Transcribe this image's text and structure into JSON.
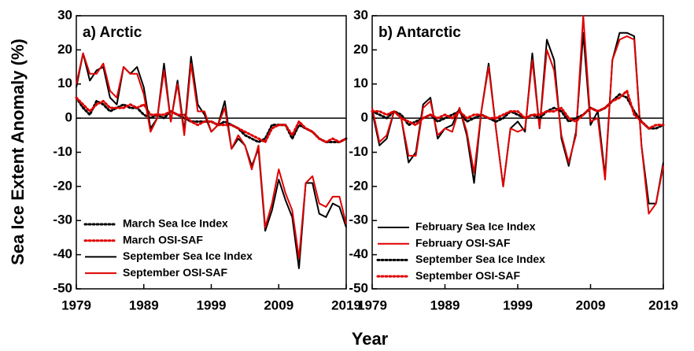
{
  "chart_data": [
    {
      "type": "line",
      "title": "a) Arctic",
      "ylabel": "Sea Ice Extent Anomaly (%)",
      "xlabel": "Year",
      "x": [
        1979,
        1980,
        1981,
        1982,
        1983,
        1984,
        1985,
        1986,
        1987,
        1988,
        1989,
        1990,
        1991,
        1992,
        1993,
        1994,
        1995,
        1996,
        1997,
        1998,
        1999,
        2000,
        2001,
        2002,
        2003,
        2004,
        2005,
        2006,
        2007,
        2008,
        2009,
        2010,
        2011,
        2012,
        2013,
        2014,
        2015,
        2016,
        2017,
        2018,
        2019
      ],
      "xlim": [
        1979,
        2019
      ],
      "xticks": [
        1979,
        1989,
        1999,
        2009,
        2019
      ],
      "ylim": [
        -50,
        30
      ],
      "yticks": [
        -50,
        -40,
        -30,
        -20,
        -10,
        0,
        10,
        20,
        30
      ],
      "hline": 0,
      "series": [
        {
          "name": "March Sea Ice Index",
          "color": "#000000",
          "dashed": true,
          "values": [
            6,
            3,
            1,
            5,
            4,
            2,
            3,
            4,
            3,
            3,
            1,
            0,
            1,
            0,
            2,
            1,
            0,
            -1,
            -1,
            -1,
            -1,
            -2,
            -1,
            -2,
            -3,
            -5,
            -6,
            -7,
            -6,
            -2,
            -2,
            -2,
            -6,
            -2,
            -3,
            -4,
            -6,
            -7,
            -7,
            -7,
            -6
          ]
        },
        {
          "name": "March OSI-SAF",
          "color": "#e00000",
          "dashed": true,
          "values": [
            6,
            4,
            2,
            4,
            5,
            3,
            3,
            3,
            4,
            3,
            4,
            1,
            1,
            1,
            2,
            1,
            1,
            -1,
            -2,
            -1,
            -1,
            -2,
            -2,
            -2,
            -3,
            -4,
            -5,
            -6,
            -7,
            -3,
            -2,
            -2,
            -5,
            -1,
            -3,
            -4,
            -6,
            -7,
            -6,
            -7,
            -6
          ]
        },
        {
          "name": "September Sea Ice Index",
          "color": "#000000",
          "dashed": false,
          "values": [
            9,
            19,
            11,
            14,
            15,
            6,
            4,
            15,
            13,
            15,
            9,
            -3,
            0,
            16,
            -1,
            11,
            -4,
            18,
            4,
            1,
            -4,
            -2,
            5,
            -9,
            -6,
            -8,
            -14,
            -9,
            -33,
            -27,
            -18,
            -24,
            -29,
            -44,
            -19,
            -19,
            -28,
            -29,
            -25,
            -26,
            -32
          ]
        },
        {
          "name": "September OSI-SAF",
          "color": "#e00000",
          "dashed": false,
          "values": [
            10,
            19,
            13,
            13,
            16,
            8,
            6,
            15,
            13,
            13,
            7,
            -4,
            0,
            14,
            -1,
            10,
            -5,
            16,
            2,
            2,
            -4,
            -2,
            3,
            -9,
            -5,
            -8,
            -15,
            -8,
            -32,
            -25,
            -15,
            -22,
            -27,
            -41,
            -19,
            -17,
            -25,
            -26,
            -23,
            -23,
            -31
          ]
        }
      ]
    },
    {
      "type": "line",
      "title": "b) Antarctic",
      "x": [
        1979,
        1980,
        1981,
        1982,
        1983,
        1984,
        1985,
        1986,
        1987,
        1988,
        1989,
        1990,
        1991,
        1992,
        1993,
        1994,
        1995,
        1996,
        1997,
        1998,
        1999,
        2000,
        2001,
        2002,
        2003,
        2004,
        2005,
        2006,
        2007,
        2008,
        2009,
        2010,
        2011,
        2012,
        2013,
        2014,
        2015,
        2016,
        2017,
        2018,
        2019
      ],
      "xlim": [
        1979,
        2019
      ],
      "xticks": [
        1979,
        1989,
        1999,
        2009,
        2019
      ],
      "ylim": [
        -50,
        30
      ],
      "yticks": [
        -50,
        -40,
        -30,
        -20,
        -10,
        0,
        10,
        20,
        30
      ],
      "hline": 0,
      "series": [
        {
          "name": "February Sea Ice Index",
          "color": "#000000",
          "dashed": false,
          "values": [
            2,
            -8,
            -6,
            2,
            0,
            -13,
            -10,
            4,
            6,
            -6,
            -3,
            -2,
            3,
            -5,
            -19,
            2,
            16,
            -3,
            -20,
            -3,
            -1,
            -4,
            19,
            -3,
            23,
            17,
            -6,
            -14,
            -4,
            25,
            -2,
            2,
            -17,
            17,
            25,
            25,
            24,
            -8,
            -25,
            -25,
            -13
          ]
        },
        {
          "name": "February OSI-SAF",
          "color": "#e00000",
          "dashed": false,
          "values": [
            3,
            -7,
            -5,
            2,
            0,
            -11,
            -11,
            3,
            5,
            -5,
            -3,
            -4,
            3,
            -4,
            -16,
            2,
            15,
            -3,
            -20,
            -3,
            -4,
            -3,
            17,
            -3,
            20,
            14,
            -5,
            -13,
            -5,
            30,
            -1,
            0,
            -18,
            17,
            23,
            24,
            23,
            -8,
            -28,
            -25,
            -14
          ]
        },
        {
          "name": "September Sea Ice Index",
          "color": "#000000",
          "dashed": true,
          "values": [
            2,
            1,
            0,
            2,
            1,
            -2,
            -1,
            0,
            1,
            -1,
            0,
            1,
            2,
            -1,
            0,
            1,
            0,
            -1,
            0,
            2,
            1,
            0,
            1,
            0,
            2,
            3,
            2,
            -1,
            0,
            1,
            3,
            2,
            3,
            5,
            7,
            6,
            2,
            -1,
            -3,
            -3,
            -2
          ]
        },
        {
          "name": "September OSI-SAF",
          "color": "#e00000",
          "dashed": true,
          "values": [
            2,
            2,
            1,
            2,
            0,
            -1,
            -2,
            0,
            1,
            0,
            1,
            0,
            2,
            0,
            1,
            1,
            0,
            0,
            1,
            2,
            2,
            0,
            1,
            1,
            2,
            2,
            3,
            0,
            -1,
            1,
            3,
            2,
            3,
            5,
            6,
            8,
            1,
            -1,
            -3,
            -2,
            -2
          ]
        }
      ]
    }
  ]
}
